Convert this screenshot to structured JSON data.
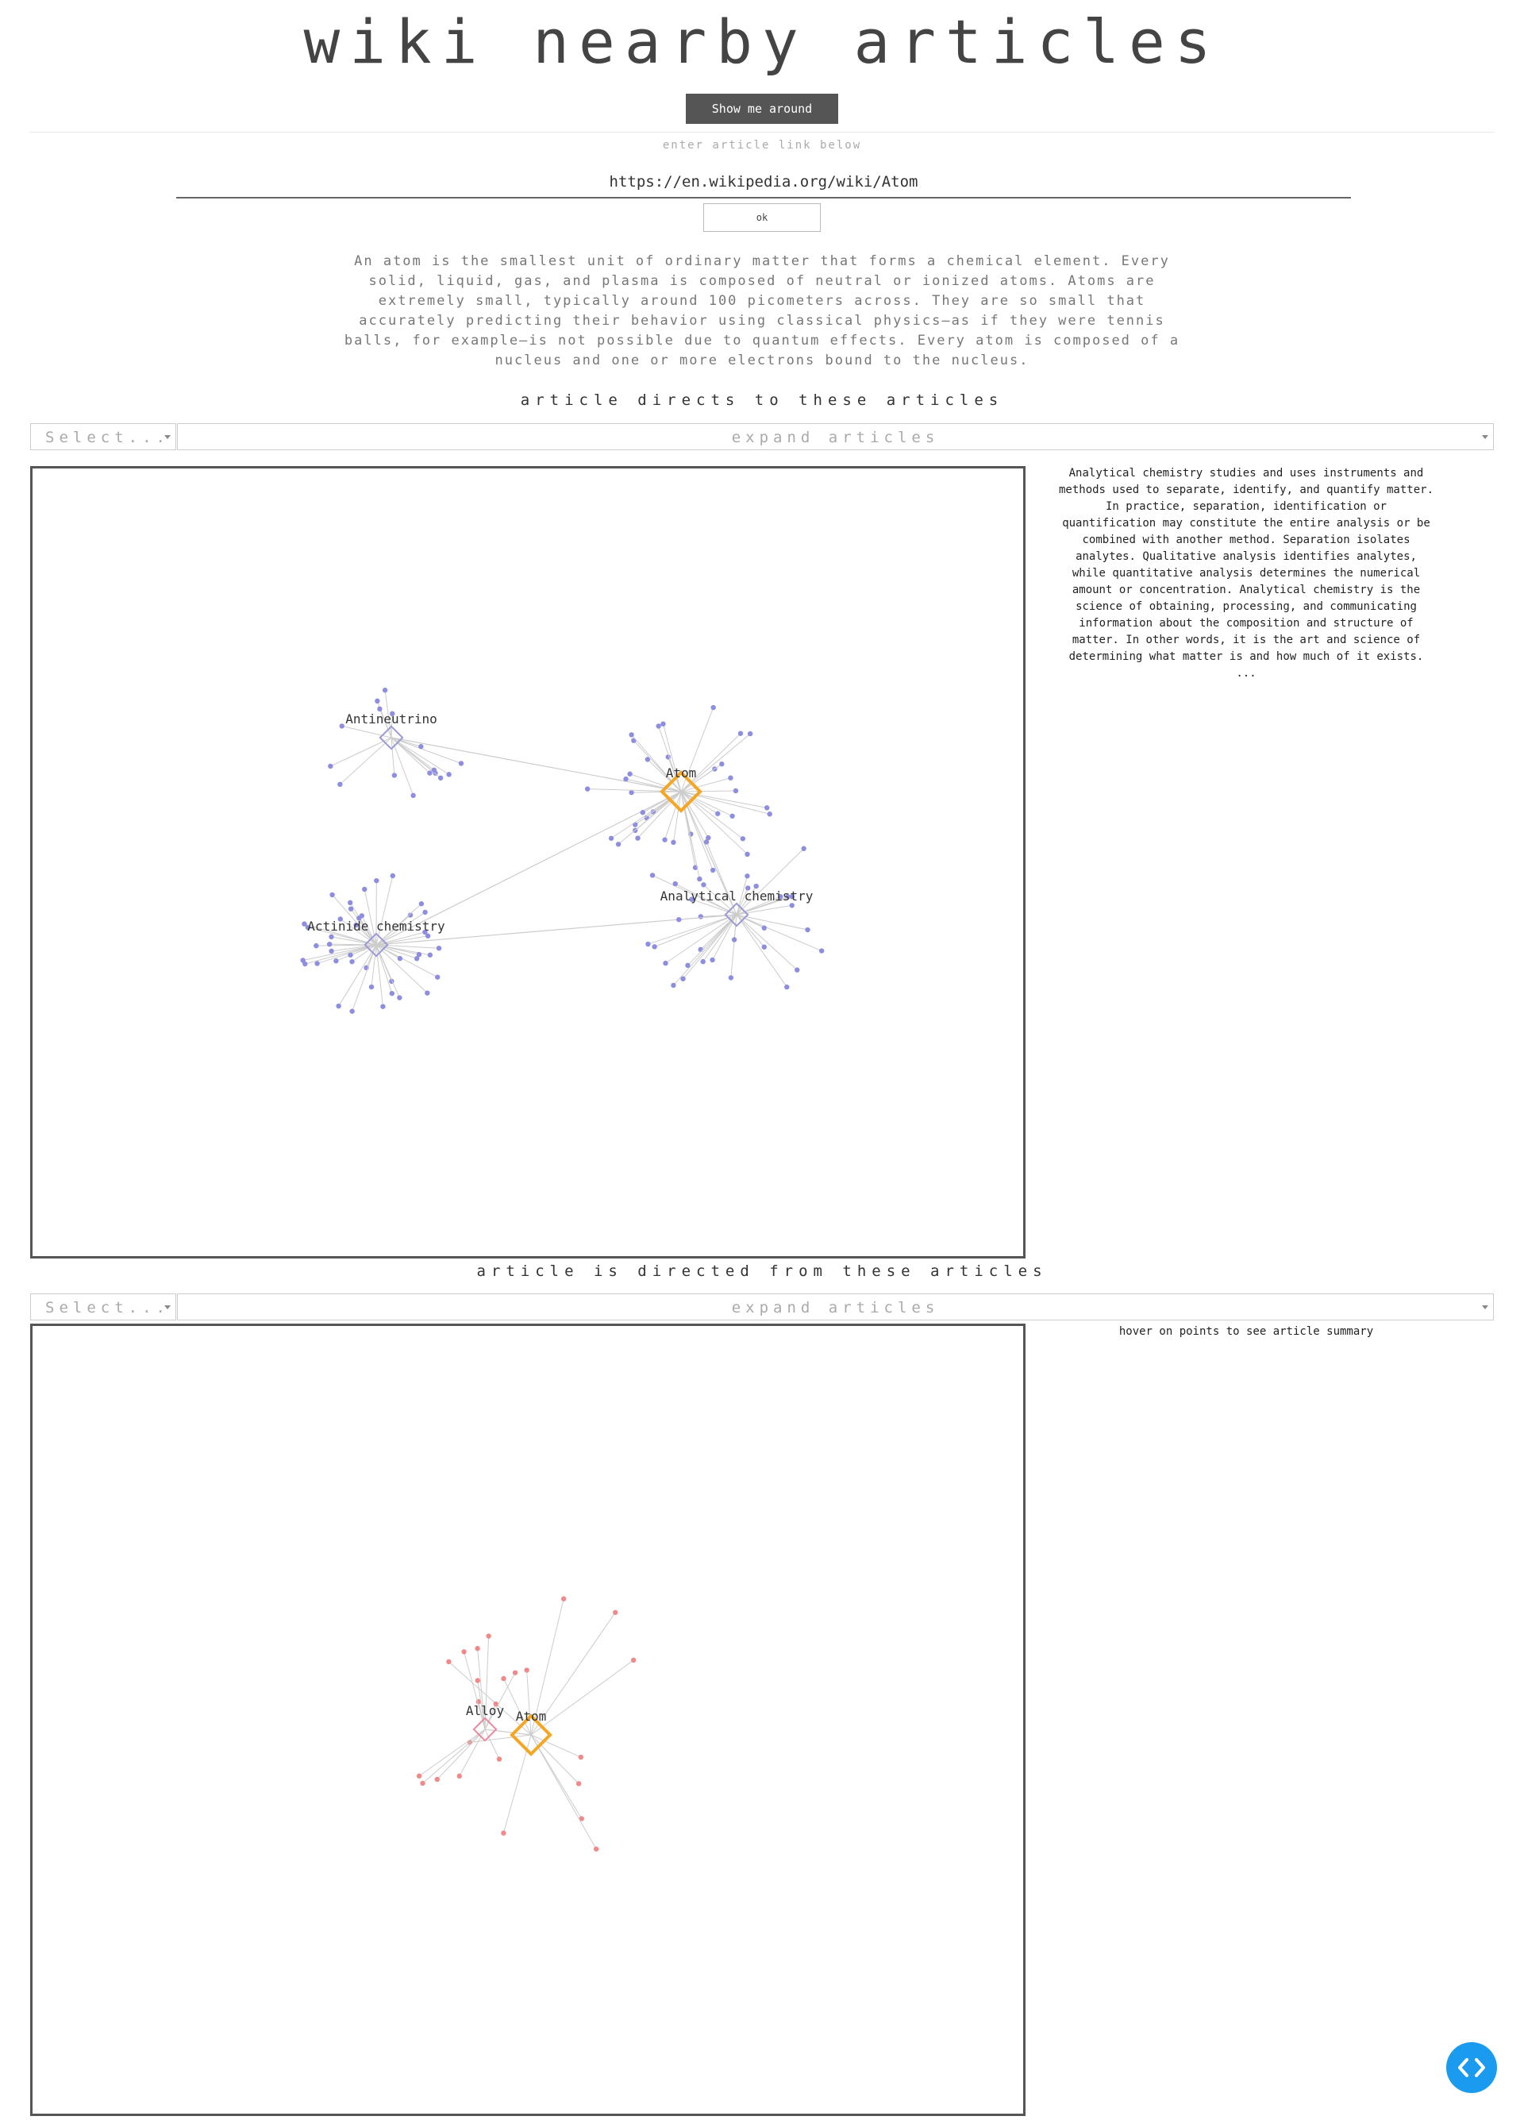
{
  "app": {
    "title": "wiki nearby articles",
    "show_button": "Show me around"
  },
  "search": {
    "hint": "enter article link below",
    "value": "https://en.wikipedia.org/wiki/Atom",
    "ok_label": "ok"
  },
  "article_summary": "An atom is the smallest unit of ordinary matter that forms a chemical element. Every solid, liquid, gas, and plasma is composed of neutral or ionized atoms. Atoms are extremely small, typically around 100 picometers across. They are so small that accurately predicting their behavior using classical physics—as if they were tennis balls, for example—is not possible due to quantum effects. Every atom is composed of a nucleus and one or more electrons bound to the nucleus.",
  "outgoing": {
    "title": "article directs to these articles",
    "select_placeholder": "Select...",
    "expand_placeholder": "expand articles",
    "side_text": "Analytical chemistry studies and uses instruments and methods used to separate, identify, and quantify matter. In practice, separation, identification or quantification may constitute the entire analysis or be combined with another method. Separation isolates analytes. Qualitative analysis identifies analytes, while quantitative analysis determines the numerical amount or concentration. Analytical chemistry is the science of obtaining, processing, and communicating information about the composition and structure of matter. In other words, it is the art and science of determining what matter is and how much of it exists.",
    "side_ellipsis": "...",
    "hubs": [
      {
        "label": "Atom",
        "main": true
      },
      {
        "label": "Antineutrino",
        "main": false
      },
      {
        "label": "Actinide chemistry",
        "main": false
      },
      {
        "label": "Analytical chemistry",
        "main": false
      }
    ],
    "node_color": "#8e8ee0",
    "hub_color": "#9a9ad8",
    "main_color": "#f5a623"
  },
  "incoming": {
    "title": "article is directed from these articles",
    "select_placeholder": "Select...",
    "expand_placeholder": "expand articles",
    "side_text": "hover on points to see article summary",
    "hubs": [
      {
        "label": "Atom",
        "main": true
      },
      {
        "label": "Alloy",
        "main": false
      }
    ],
    "node_color": "#f08a8a",
    "hub_color": "#e88aa0",
    "main_color": "#f5a623"
  },
  "fab": {
    "icon": "code-icon"
  }
}
